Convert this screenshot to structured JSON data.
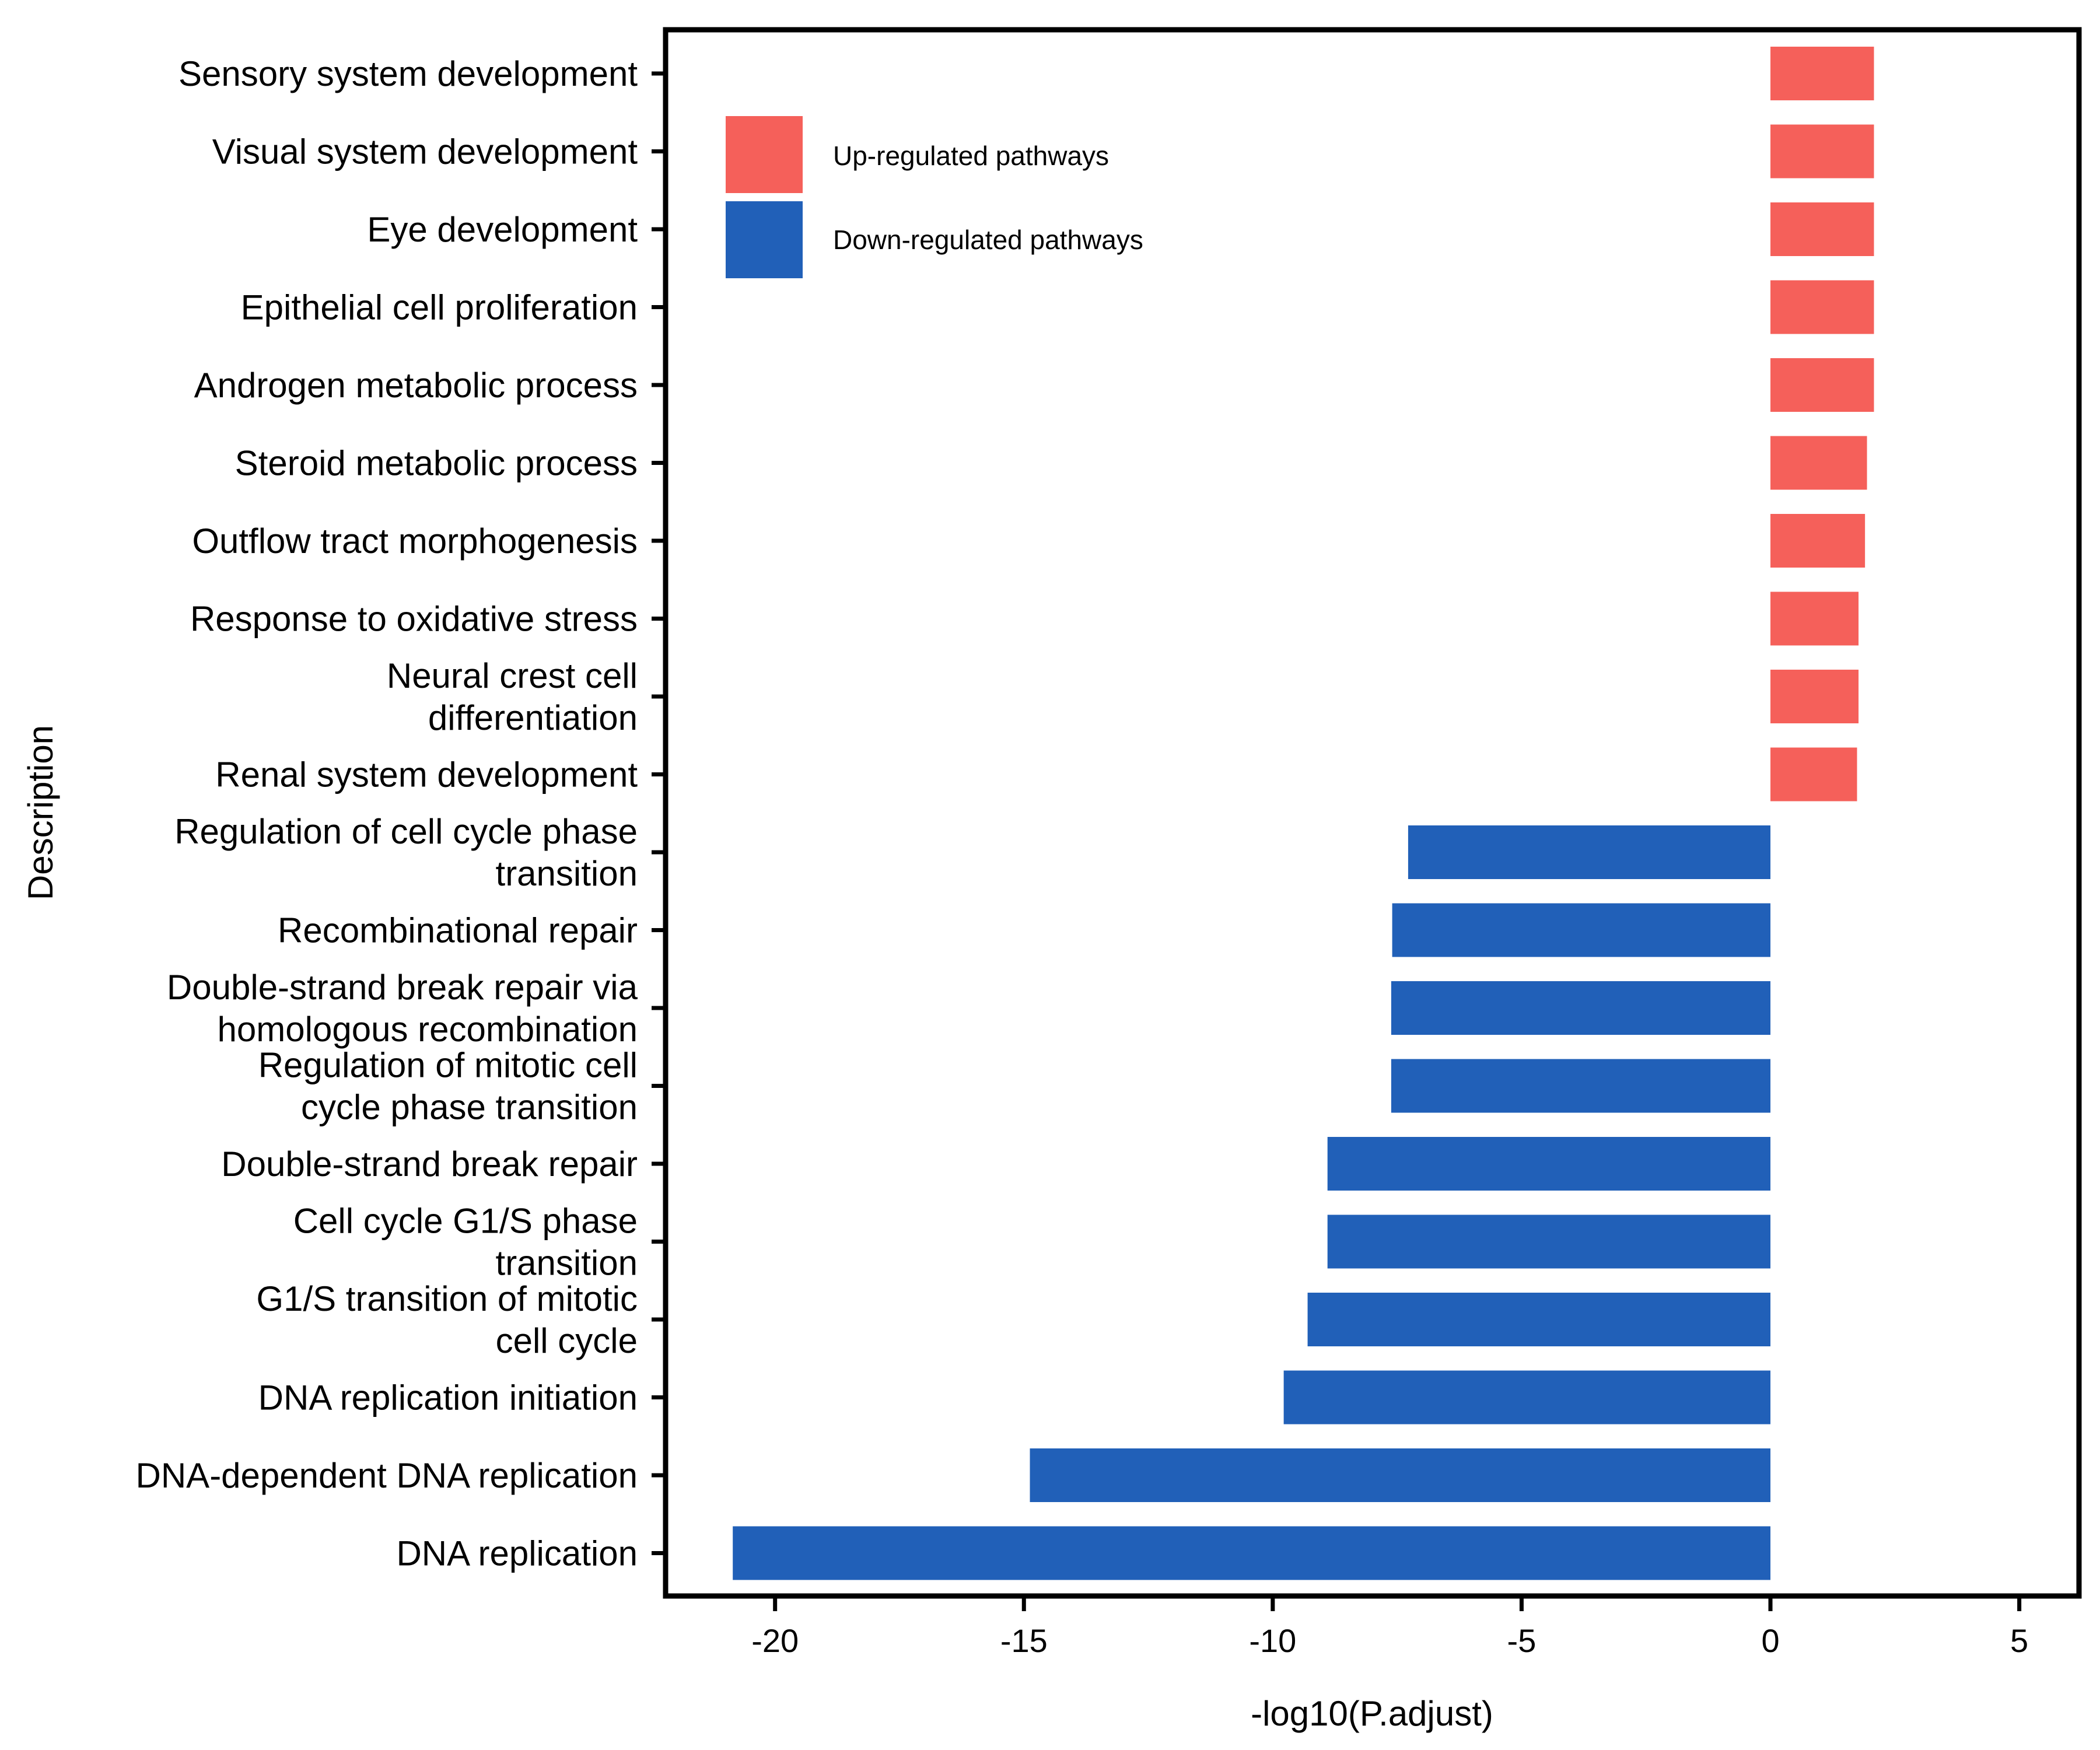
{
  "chart_data": {
    "type": "bar",
    "orientation": "horizontal",
    "xlabel": "-log10(P.adjust)",
    "ylabel": "Description",
    "xlim": [
      -22.2,
      6.2
    ],
    "xticks": [
      -20,
      -15,
      -10,
      -5,
      0,
      5
    ],
    "grid": false,
    "legend_position": "top-left",
    "legend": [
      {
        "name": "Up-regulated pathways",
        "color": "#F5605A"
      },
      {
        "name": "Down-regulated pathways",
        "color": "#2160B8"
      }
    ],
    "categories": [
      [
        "Sensory system development"
      ],
      [
        "Visual system development"
      ],
      [
        "Eye development"
      ],
      [
        "Epithelial cell proliferation"
      ],
      [
        "Androgen metabolic process"
      ],
      [
        "Steroid metabolic process"
      ],
      [
        "Outflow tract morphogenesis"
      ],
      [
        "Response to oxidative stress"
      ],
      [
        "Neural crest cell",
        "differentiation"
      ],
      [
        "Renal system development"
      ],
      [
        "Regulation of cell cycle phase",
        "transition"
      ],
      [
        "Recombinational repair"
      ],
      [
        "Double-strand break repair via",
        "homologous recombination"
      ],
      [
        "Regulation of mitotic cell",
        "cycle phase transition"
      ],
      [
        "Double-strand break repair"
      ],
      [
        "Cell cycle G1/S phase",
        "transition"
      ],
      [
        "G1/S transition of mitotic",
        "cell cycle"
      ],
      [
        "DNA replication initiation"
      ],
      [
        "DNA-dependent DNA replication"
      ],
      [
        "DNA replication"
      ]
    ],
    "values": [
      2.08,
      2.08,
      2.08,
      2.08,
      2.08,
      1.94,
      1.9,
      1.77,
      1.77,
      1.74,
      -7.28,
      -7.6,
      -7.62,
      -7.62,
      -8.9,
      -8.9,
      -9.3,
      -9.78,
      -14.88,
      -20.85
    ],
    "groups": [
      "up",
      "up",
      "up",
      "up",
      "up",
      "up",
      "up",
      "up",
      "up",
      "up",
      "down",
      "down",
      "down",
      "down",
      "down",
      "down",
      "down",
      "down",
      "down",
      "down"
    ]
  }
}
